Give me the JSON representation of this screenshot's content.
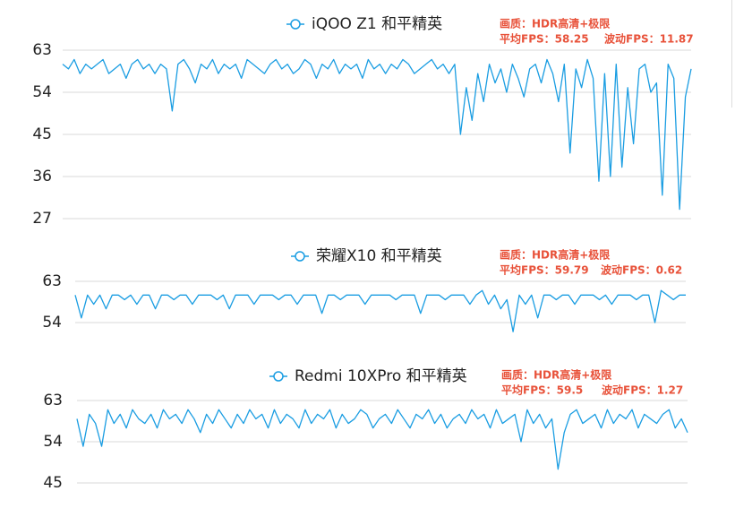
{
  "chart_data": [
    {
      "type": "line",
      "ylim": [
        27,
        63
      ],
      "yticks": [
        63,
        54,
        45,
        36,
        27
      ],
      "grid": true,
      "annotations": [
        "画质：HDR高清+极限",
        "平均FPS：58.25",
        "波动FPS：11.87"
      ],
      "series": [
        {
          "name": "iQOO Z1 和平精英",
          "color": "#1a9de2",
          "values": [
            60,
            59,
            61,
            58,
            60,
            59,
            60,
            61,
            58,
            59,
            60,
            57,
            60,
            61,
            59,
            60,
            58,
            60,
            59,
            50,
            60,
            61,
            59,
            56,
            60,
            59,
            61,
            58,
            60,
            59,
            60,
            57,
            61,
            60,
            59,
            58,
            60,
            61,
            59,
            60,
            58,
            59,
            61,
            60,
            57,
            60,
            59,
            61,
            58,
            60,
            59,
            60,
            57,
            61,
            59,
            60,
            58,
            60,
            59,
            61,
            60,
            58,
            59,
            60,
            61,
            59,
            60,
            58,
            60,
            45,
            55,
            48,
            58,
            52,
            60,
            56,
            59,
            54,
            60,
            57,
            53,
            59,
            60,
            56,
            61,
            58,
            52,
            60,
            41,
            59,
            55,
            61,
            57,
            35,
            58,
            36,
            60,
            38,
            55,
            43,
            59,
            60,
            54,
            56,
            32,
            60,
            57,
            29,
            53,
            59
          ]
        }
      ]
    },
    {
      "type": "line",
      "ylim": [
        51,
        63
      ],
      "yticks": [
        63,
        54
      ],
      "grid": true,
      "annotations": [
        "画质：HDR高清+极限",
        "平均FPS：59.79",
        "波动FPS：0.62"
      ],
      "series": [
        {
          "name": "荣耀X10 和平精英",
          "color": "#1a9de2",
          "values": [
            60,
            55,
            60,
            58,
            60,
            57,
            60,
            60,
            59,
            60,
            58,
            60,
            60,
            57,
            60,
            60,
            59,
            60,
            60,
            58,
            60,
            60,
            60,
            59,
            60,
            57,
            60,
            60,
            60,
            58,
            60,
            60,
            60,
            59,
            60,
            60,
            58,
            60,
            60,
            60,
            56,
            60,
            60,
            59,
            60,
            60,
            60,
            58,
            60,
            60,
            60,
            60,
            59,
            60,
            60,
            60,
            56,
            60,
            60,
            60,
            59,
            60,
            60,
            60,
            58,
            60,
            61,
            58,
            60,
            57,
            59,
            52,
            60,
            58,
            60,
            55,
            60,
            60,
            59,
            60,
            60,
            58,
            60,
            60,
            60,
            59,
            60,
            58,
            60,
            60,
            60,
            59,
            60,
            60,
            54,
            61,
            60,
            59,
            60,
            60
          ]
        }
      ]
    },
    {
      "type": "line",
      "ylim": [
        38,
        63
      ],
      "yticks": [
        63,
        54,
        45
      ],
      "grid": true,
      "annotations": [
        "画质：HDR高清+极限",
        "平均FPS：59.5",
        "波动FPS：1.27"
      ],
      "series": [
        {
          "name": "Redmi 10XPro 和平精英",
          "color": "#1a9de2",
          "values": [
            59,
            53,
            60,
            58,
            53,
            61,
            58,
            60,
            57,
            61,
            59,
            58,
            60,
            57,
            61,
            59,
            60,
            58,
            61,
            59,
            56,
            60,
            58,
            61,
            59,
            57,
            60,
            58,
            61,
            59,
            60,
            57,
            61,
            58,
            60,
            59,
            57,
            61,
            58,
            60,
            59,
            61,
            57,
            60,
            58,
            59,
            61,
            60,
            57,
            59,
            60,
            58,
            61,
            59,
            57,
            60,
            59,
            61,
            58,
            60,
            57,
            59,
            60,
            58,
            61,
            59,
            60,
            57,
            61,
            58,
            59,
            60,
            54,
            61,
            58,
            60,
            57,
            59,
            48,
            56,
            60,
            61,
            58,
            59,
            60,
            57,
            61,
            58,
            60,
            59,
            61,
            57,
            60,
            59,
            58,
            60,
            61,
            57,
            59,
            56
          ]
        }
      ]
    }
  ]
}
